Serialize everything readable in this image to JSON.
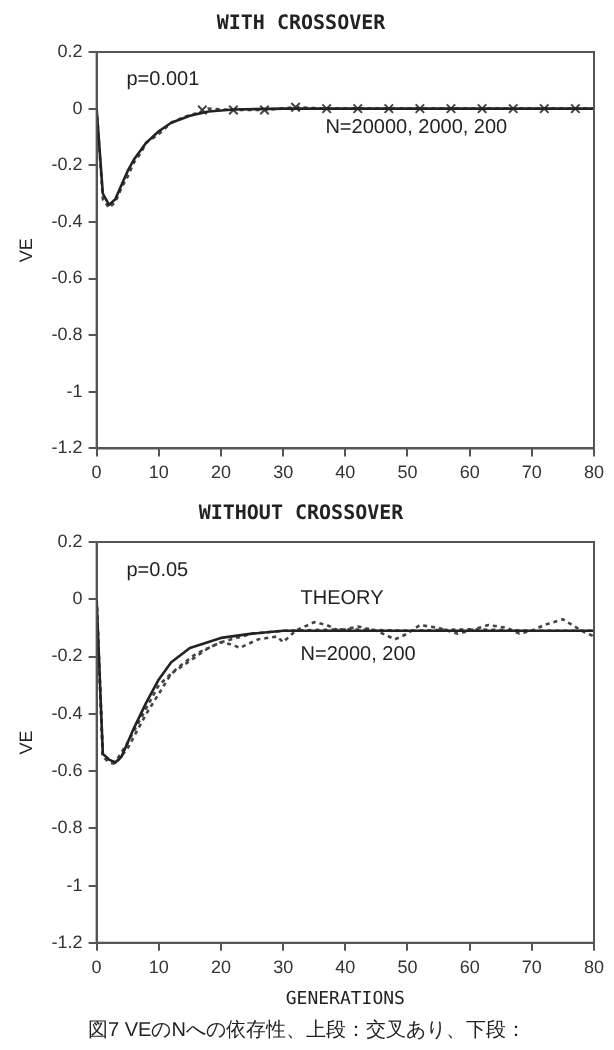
{
  "chart_data": [
    {
      "type": "line",
      "title": "WITH CROSSOVER",
      "ylabel": "VE",
      "x": [
        0,
        1,
        2,
        3,
        4,
        5,
        6,
        8,
        10,
        12,
        15,
        18,
        22,
        30,
        80
      ],
      "xlim": [
        0,
        80
      ],
      "xticks": [
        0,
        10,
        20,
        30,
        40,
        50,
        60,
        70,
        80
      ],
      "ylim": [
        -1.2,
        0.2
      ],
      "yticks": [
        -1.2,
        -1,
        -0.8,
        -0.6,
        -0.4,
        -0.2,
        0,
        0.2
      ],
      "grid": false,
      "legend": false,
      "annotations": [
        "p=0.001",
        "N=20000, 2000, 200"
      ],
      "series": [
        {
          "color": "#222222",
          "line_style": "solid",
          "marker": "none",
          "values": [
            0,
            -0.3,
            -0.34,
            -0.32,
            -0.27,
            -0.22,
            -0.18,
            -0.12,
            -0.08,
            -0.05,
            -0.025,
            -0.01,
            -0.003,
            0,
            0
          ]
        },
        {
          "color": "#444444",
          "line_style": "dotted",
          "marker": "none",
          "x": [
            0,
            1,
            2,
            3,
            4,
            5,
            6,
            7,
            8,
            10,
            12,
            14,
            17,
            18,
            22,
            27,
            32,
            37,
            80
          ],
          "values": [
            0,
            -0.32,
            -0.35,
            -0.33,
            -0.28,
            -0.24,
            -0.19,
            -0.16,
            -0.12,
            -0.09,
            -0.05,
            -0.03,
            -0.01,
            0,
            -0.005,
            -0.005,
            0.005,
            0,
            0
          ]
        },
        {
          "type": "scatter",
          "color": "#444444",
          "marker": "cross",
          "x": [
            17,
            22,
            27,
            32,
            37,
            42,
            47,
            52,
            57,
            62,
            67,
            72,
            77
          ],
          "values": [
            -0.005,
            -0.005,
            -0.005,
            0.005,
            0,
            0,
            0,
            0,
            0,
            0,
            0,
            0,
            0
          ]
        }
      ]
    },
    {
      "type": "line",
      "title": "WITHOUT CROSSOVER",
      "ylabel": "VE",
      "xlabel": "GENERATIONS",
      "x": [
        0,
        1,
        2,
        3,
        4,
        5,
        6,
        8,
        10,
        12,
        15,
        20,
        25,
        30,
        40,
        80
      ],
      "xlim": [
        0,
        80
      ],
      "xticks": [
        0,
        10,
        20,
        30,
        40,
        50,
        60,
        70,
        80
      ],
      "ylim": [
        -1.2,
        0.2
      ],
      "yticks": [
        -1.2,
        -1,
        -0.8,
        -0.6,
        -0.4,
        -0.2,
        0,
        0.2
      ],
      "grid": false,
      "legend": false,
      "annotations": [
        "p=0.05",
        "THEORY",
        "N=2000, 200",
        "図7 VEのNへの依存性、上段：交叉あり、下段："
      ],
      "series": [
        {
          "color": "#222222",
          "line_style": "solid",
          "marker": "none",
          "values": [
            0,
            -0.54,
            -0.56,
            -0.57,
            -0.55,
            -0.5,
            -0.45,
            -0.36,
            -0.28,
            -0.22,
            -0.17,
            -0.135,
            -0.12,
            -0.11,
            -0.11,
            -0.11
          ]
        },
        {
          "color": "#444444",
          "line_style": "dotted",
          "marker": "none",
          "x": [
            0,
            1,
            2,
            3,
            5,
            8,
            10,
            12,
            14,
            16,
            18,
            20,
            22,
            23,
            26,
            29,
            30,
            32,
            35,
            37,
            39,
            42,
            45,
            48,
            50,
            52,
            55,
            58,
            60,
            63,
            66,
            68,
            70,
            72,
            75,
            78,
            80
          ],
          "values": [
            0,
            -0.55,
            -0.57,
            -0.575,
            -0.52,
            -0.4,
            -0.33,
            -0.26,
            -0.23,
            -0.2,
            -0.17,
            -0.15,
            -0.16,
            -0.17,
            -0.14,
            -0.13,
            -0.15,
            -0.11,
            -0.08,
            -0.09,
            -0.11,
            -0.095,
            -0.11,
            -0.14,
            -0.12,
            -0.09,
            -0.1,
            -0.12,
            -0.11,
            -0.09,
            -0.1,
            -0.12,
            -0.11,
            -0.09,
            -0.07,
            -0.11,
            -0.13
          ]
        },
        {
          "color": "#444444",
          "line_style": "dotted",
          "marker": "none",
          "x": [
            0,
            1,
            3,
            5,
            8,
            10,
            13,
            16,
            20,
            25,
            30,
            40,
            50,
            60,
            70,
            80
          ],
          "values": [
            0,
            -0.55,
            -0.57,
            -0.5,
            -0.38,
            -0.3,
            -0.24,
            -0.19,
            -0.15,
            -0.12,
            -0.11,
            -0.105,
            -0.11,
            -0.105,
            -0.11,
            -0.11
          ]
        }
      ]
    }
  ]
}
